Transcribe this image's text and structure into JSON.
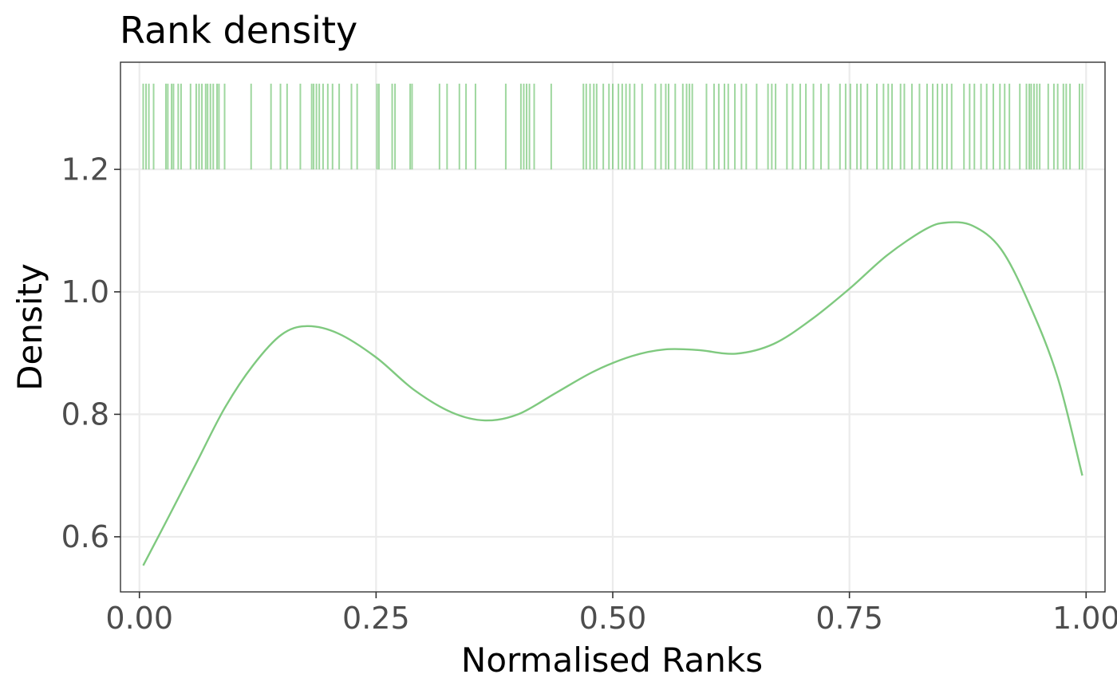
{
  "chart_data": {
    "type": "line",
    "title": "Rank density",
    "xlabel": "Normalised Ranks",
    "ylabel": "Density",
    "xlim": [
      -0.02,
      1.02
    ],
    "ylim": [
      0.51,
      1.375
    ],
    "x_ticks": [
      0.0,
      0.25,
      0.5,
      0.75,
      1.0
    ],
    "x_tick_labels": [
      "0.00",
      "0.25",
      "0.50",
      "0.75",
      "1.00"
    ],
    "y_ticks": [
      0.6,
      0.8,
      1.0,
      1.2
    ],
    "y_tick_labels": [
      "0.6",
      "0.8",
      "1.0",
      "1.2"
    ],
    "grid": true,
    "line_color": "#7fc97f",
    "series": [
      {
        "x": [
          0.004,
          0.03,
          0.06,
          0.09,
          0.12,
          0.15,
          0.177,
          0.21,
          0.25,
          0.29,
          0.33,
          0.365,
          0.4,
          0.44,
          0.48,
          0.52,
          0.555,
          0.59,
          0.63,
          0.67,
          0.71,
          0.75,
          0.79,
          0.83,
          0.852,
          0.88,
          0.91,
          0.94,
          0.97,
          0.996
        ],
        "y": [
          0.553,
          0.63,
          0.72,
          0.81,
          0.88,
          0.93,
          0.944,
          0.932,
          0.893,
          0.84,
          0.803,
          0.79,
          0.8,
          0.835,
          0.87,
          0.895,
          0.906,
          0.905,
          0.899,
          0.915,
          0.955,
          1.005,
          1.06,
          1.102,
          1.113,
          1.108,
          1.07,
          0.98,
          0.86,
          0.7
        ]
      }
    ],
    "rug": {
      "y_range": [
        1.2,
        1.34
      ],
      "x": [
        0.004,
        0.007,
        0.01,
        0.015,
        0.028,
        0.03,
        0.034,
        0.036,
        0.041,
        0.044,
        0.054,
        0.06,
        0.063,
        0.066,
        0.07,
        0.072,
        0.075,
        0.078,
        0.082,
        0.084,
        0.09,
        0.118,
        0.139,
        0.149,
        0.156,
        0.17,
        0.182,
        0.184,
        0.187,
        0.19,
        0.194,
        0.199,
        0.204,
        0.211,
        0.224,
        0.23,
        0.251,
        0.253,
        0.267,
        0.27,
        0.286,
        0.288,
        0.317,
        0.325,
        0.338,
        0.345,
        0.355,
        0.387,
        0.403,
        0.406,
        0.409,
        0.412,
        0.417,
        0.435,
        0.469,
        0.472,
        0.476,
        0.48,
        0.483,
        0.49,
        0.496,
        0.5,
        0.506,
        0.51,
        0.514,
        0.518,
        0.523,
        0.531,
        0.545,
        0.551,
        0.556,
        0.559,
        0.566,
        0.574,
        0.578,
        0.581,
        0.584,
        0.599,
        0.607,
        0.612,
        0.618,
        0.622,
        0.629,
        0.636,
        0.641,
        0.652,
        0.664,
        0.668,
        0.672,
        0.684,
        0.69,
        0.698,
        0.704,
        0.712,
        0.72,
        0.728,
        0.74,
        0.746,
        0.751,
        0.758,
        0.762,
        0.769,
        0.779,
        0.786,
        0.791,
        0.795,
        0.804,
        0.808,
        0.816,
        0.824,
        0.832,
        0.838,
        0.843,
        0.848,
        0.853,
        0.858,
        0.871,
        0.877,
        0.882,
        0.889,
        0.895,
        0.902,
        0.909,
        0.914,
        0.919,
        0.93,
        0.937,
        0.94,
        0.942,
        0.945,
        0.948,
        0.951,
        0.96,
        0.966,
        0.97,
        0.976,
        0.979,
        0.983,
        0.993,
        0.996
      ]
    }
  }
}
